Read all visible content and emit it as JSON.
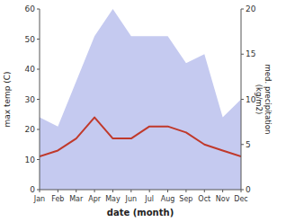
{
  "chart_data": {
    "type": "line",
    "xlabel": "date (month)",
    "ylabel": "max temp (C)",
    "y2label": "med. precipitation\n(kg/m2)",
    "categories": [
      "Jan",
      "Feb",
      "Mar",
      "Apr",
      "May",
      "Jun",
      "Jul",
      "Aug",
      "Sep",
      "Oct",
      "Nov",
      "Dec"
    ],
    "series": [
      {
        "type": "line",
        "color": "#c0392b",
        "values": [
          11,
          13,
          17,
          24,
          17,
          17,
          21,
          21,
          19,
          15,
          13,
          11
        ]
      },
      {
        "type": "area",
        "axis": "y2",
        "color": "#c5caf0",
        "values": [
          8,
          7,
          12,
          17,
          20,
          17,
          17,
          17,
          14,
          15,
          8,
          10
        ]
      }
    ],
    "ylim": [
      0,
      60
    ],
    "yticks": [
      0,
      10,
      20,
      30,
      40,
      50,
      60
    ],
    "y2lim": [
      0,
      20
    ],
    "y2ticks": [
      0,
      5,
      10,
      15,
      20
    ],
    "grid": false
  }
}
